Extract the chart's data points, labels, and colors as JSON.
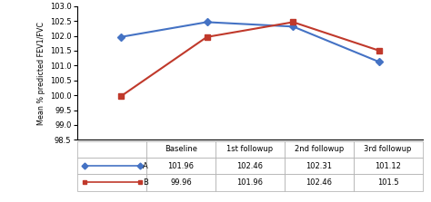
{
  "x_labels": [
    "Baseline",
    "1st followup",
    "2nd followup",
    "3rd followup"
  ],
  "series_A": [
    101.96,
    102.46,
    102.31,
    101.12
  ],
  "series_B": [
    99.96,
    101.96,
    102.46,
    101.5
  ],
  "series_A_color": "#4472C4",
  "series_B_color": "#C0392B",
  "ylabel": "Mean % predicted FEV1/FVC",
  "ylim": [
    98.5,
    103
  ],
  "yticks": [
    98.5,
    99,
    99.5,
    100,
    100.5,
    101,
    101.5,
    102,
    102.5,
    103
  ],
  "col_labels": [
    "Baseline",
    "1st followup",
    "2nd followup",
    "3rd followup"
  ],
  "row_label_A": "A",
  "row_label_B": "B",
  "cell_values_A": [
    "101.96",
    "102.46",
    "102.31",
    "101.12"
  ],
  "cell_values_B": [
    "99.96",
    "101.96",
    "102.46",
    "101.5"
  ],
  "background_color": "#ffffff"
}
